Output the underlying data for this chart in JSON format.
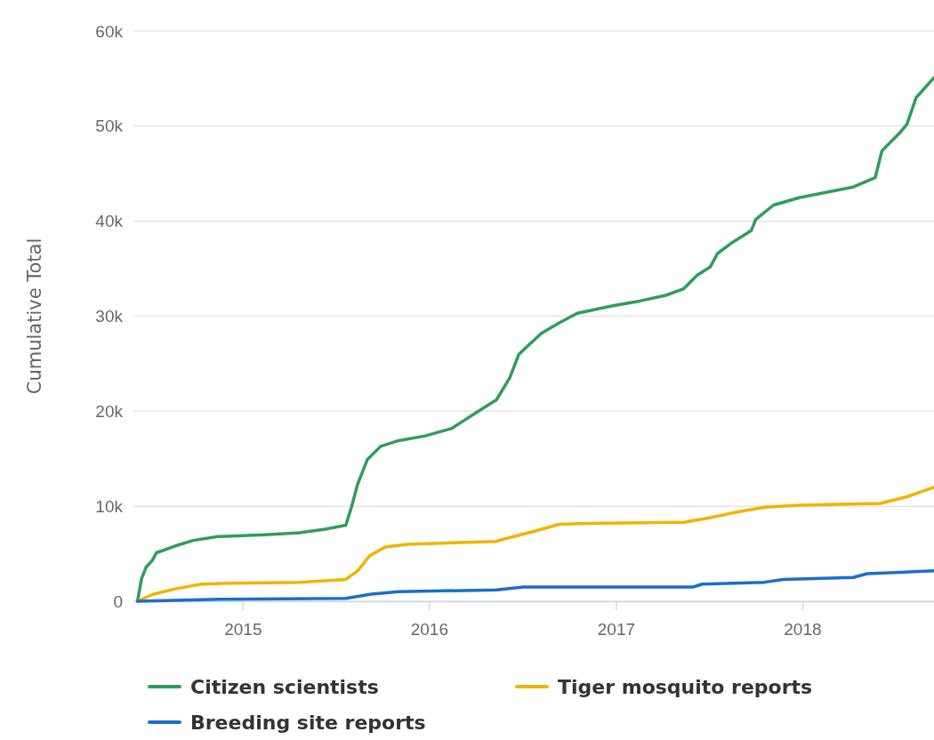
{
  "chart_data": {
    "type": "line",
    "ylabel": "Cumulative Total",
    "xlim": [
      "2014-06-01",
      "2018-09-16"
    ],
    "xticks": [
      "2015",
      "2016",
      "2017",
      "2018"
    ],
    "ylim": [
      0,
      60000
    ],
    "yticks": [
      {
        "value": 0,
        "label": "0"
      },
      {
        "value": 10000,
        "label": "10k"
      },
      {
        "value": 20000,
        "label": "20k"
      },
      {
        "value": 30000,
        "label": "30k"
      },
      {
        "value": 40000,
        "label": "40k"
      },
      {
        "value": 50000,
        "label": "50k"
      },
      {
        "value": 60000,
        "label": "60k"
      }
    ],
    "grid": "y",
    "legend": "bottom",
    "marker": "none",
    "line_style": "solid",
    "series": [
      {
        "name": "Citizen scientists",
        "color": "#2e9e5b",
        "x": [
          "2014-06-09",
          "2014-06-17",
          "2014-06-26",
          "2014-07-08",
          "2014-07-16",
          "2014-08-21",
          "2014-09-26",
          "2014-11-13",
          "2015-02-13",
          "2015-04-22",
          "2015-06-14",
          "2015-07-22",
          "2015-08-02",
          "2015-08-14",
          "2015-09-02",
          "2015-09-28",
          "2015-11-02",
          "2015-12-24",
          "2016-02-15",
          "2016-03-03",
          "2016-04-07",
          "2016-05-12",
          "2016-06-07",
          "2016-06-25",
          "2016-08-08",
          "2016-09-12",
          "2016-10-17",
          "2016-12-26",
          "2017-02-17",
          "2017-04-09",
          "2017-05-14",
          "2017-06-09",
          "2017-07-05",
          "2017-07-19",
          "2017-08-18",
          "2017-09-23",
          "2017-10-02",
          "2017-11-06",
          "2017-12-28",
          "2018-04-11",
          "2018-05-24",
          "2018-06-06",
          "2018-07-11",
          "2018-07-25",
          "2018-08-12",
          "2018-09-16"
        ],
        "values": [
          0,
          2400,
          3600,
          4300,
          5100,
          5800,
          6400,
          6800,
          7000,
          7200,
          7600,
          8000,
          9900,
          12300,
          14900,
          16300,
          16900,
          17400,
          18200,
          18800,
          20000,
          21200,
          23500,
          26000,
          28200,
          29300,
          30300,
          31100,
          31600,
          32200,
          32900,
          34300,
          35200,
          36600,
          37800,
          39000,
          40200,
          41700,
          42500,
          43600,
          44600,
          47400,
          49300,
          50200,
          53000,
          55100
        ]
      },
      {
        "name": "Tiger mosquito reports",
        "color": "#f0b400",
        "x": [
          "2014-06-09",
          "2014-07-08",
          "2014-08-21",
          "2014-10-13",
          "2014-12-05",
          "2015-04-22",
          "2015-07-22",
          "2015-08-14",
          "2015-09-07",
          "2015-10-07",
          "2015-11-20",
          "2016-05-12",
          "2016-05-30",
          "2016-07-21",
          "2016-09-12",
          "2016-11-05",
          "2017-05-14",
          "2017-07-05",
          "2017-08-28",
          "2017-10-19",
          "2017-12-28",
          "2018-06-03",
          "2018-07-25",
          "2018-09-16"
        ],
        "values": [
          0,
          700,
          1300,
          1800,
          1900,
          2000,
          2300,
          3200,
          4800,
          5700,
          6000,
          6300,
          6600,
          7300,
          8100,
          8200,
          8300,
          8800,
          9400,
          9900,
          10100,
          10300,
          11000,
          12000
        ]
      },
      {
        "name": "Breeding site reports",
        "color": "#1a6fcc",
        "x": [
          "2014-06-09",
          "2014-11-17",
          "2015-07-22",
          "2015-09-10",
          "2015-11-02",
          "2016-05-12",
          "2016-07-04",
          "2017-06-01",
          "2017-06-19",
          "2017-10-19",
          "2017-11-24",
          "2018-04-11",
          "2018-05-08",
          "2018-09-16"
        ],
        "values": [
          0,
          200,
          300,
          750,
          1000,
          1200,
          1500,
          1500,
          1800,
          2000,
          2300,
          2500,
          2900,
          3200
        ]
      }
    ]
  }
}
